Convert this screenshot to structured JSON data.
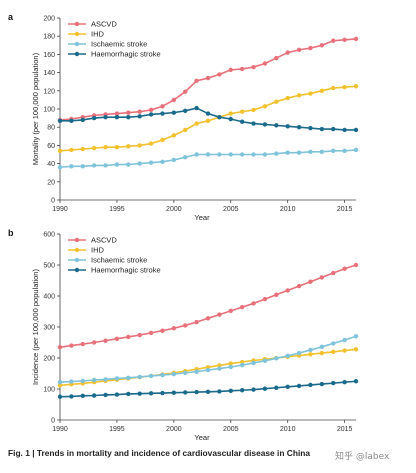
{
  "caption": {
    "bold": "Fig. 1 | Trends in mortality and incidence of cardiovascular disease in China",
    "rest": ""
  },
  "watermark": "知乎 @labex",
  "chart_data": [
    {
      "type": "line",
      "panel_label": "a",
      "xlabel": "Year",
      "ylabel": "Mortality (per 100,000 population)",
      "xlim": [
        1990,
        2016
      ],
      "ylim": [
        0,
        200
      ],
      "x_ticks": [
        1990,
        1995,
        2000,
        2005,
        2010,
        2015
      ],
      "y_ticks": [
        0,
        20,
        40,
        60,
        80,
        100,
        120,
        140,
        160,
        180,
        200
      ],
      "grid": false,
      "legend_position": "top-left",
      "x": [
        1990,
        1991,
        1992,
        1993,
        1994,
        1995,
        1996,
        1997,
        1998,
        1999,
        2000,
        2001,
        2002,
        2003,
        2004,
        2005,
        2006,
        2007,
        2008,
        2009,
        2010,
        2011,
        2012,
        2013,
        2014,
        2015,
        2016
      ],
      "series": [
        {
          "name": "ASCVD",
          "color": "#e8707a",
          "values": [
            88,
            89,
            91,
            93,
            94,
            95,
            96,
            97,
            99,
            103,
            110,
            119,
            131,
            134,
            138,
            143,
            144,
            146,
            150,
            156,
            162,
            165,
            167,
            170,
            175,
            176,
            177
          ]
        },
        {
          "name": "IHD",
          "color": "#f2c12e",
          "values": [
            54,
            55,
            56,
            57,
            58,
            58,
            59,
            60,
            62,
            66,
            71,
            77,
            84,
            87,
            91,
            95,
            97,
            99,
            103,
            108,
            112,
            115,
            117,
            120,
            123,
            124,
            125
          ]
        },
        {
          "name": "Ischaemic stroke",
          "color": "#7ec3d9",
          "values": [
            36,
            37,
            37,
            38,
            38,
            39,
            39,
            40,
            41,
            42,
            44,
            47,
            50,
            50,
            50,
            50,
            50,
            50,
            50,
            51,
            52,
            52,
            53,
            53,
            54,
            54,
            55
          ]
        },
        {
          "name": "Haemorrhagic stroke",
          "color": "#1a6a8c",
          "values": [
            87,
            87,
            88,
            90,
            91,
            91,
            91,
            92,
            94,
            95,
            96,
            98,
            101,
            95,
            91,
            89,
            86,
            84,
            83,
            82,
            81,
            80,
            79,
            78,
            78,
            77,
            77
          ]
        }
      ]
    },
    {
      "type": "line",
      "panel_label": "b",
      "xlabel": "Year",
      "ylabel": "Incidence (per 100,000 population)",
      "xlim": [
        1990,
        2016
      ],
      "ylim": [
        0,
        600
      ],
      "x_ticks": [
        1990,
        1995,
        2000,
        2005,
        2010,
        2015
      ],
      "y_ticks": [
        0,
        100,
        200,
        300,
        400,
        500,
        600
      ],
      "grid": false,
      "legend_position": "top-left",
      "x": [
        1990,
        1991,
        1992,
        1993,
        1994,
        1995,
        1996,
        1997,
        1998,
        1999,
        2000,
        2001,
        2002,
        2003,
        2004,
        2005,
        2006,
        2007,
        2008,
        2009,
        2010,
        2011,
        2012,
        2013,
        2014,
        2015,
        2016
      ],
      "series": [
        {
          "name": "ASCVD",
          "color": "#e8707a",
          "values": [
            235,
            240,
            245,
            250,
            256,
            262,
            268,
            274,
            281,
            288,
            296,
            305,
            316,
            328,
            340,
            352,
            364,
            376,
            390,
            404,
            418,
            432,
            446,
            460,
            474,
            488,
            500
          ]
        },
        {
          "name": "IHD",
          "color": "#f2c12e",
          "values": [
            112,
            115,
            118,
            122,
            126,
            130,
            134,
            138,
            142,
            147,
            152,
            158,
            164,
            170,
            176,
            182,
            187,
            192,
            196,
            200,
            204,
            208,
            212,
            216,
            220,
            224,
            228
          ]
        },
        {
          "name": "Ischaemic stroke",
          "color": "#7ec3d9",
          "values": [
            122,
            124,
            126,
            129,
            131,
            134,
            136,
            139,
            142,
            145,
            148,
            152,
            156,
            161,
            166,
            171,
            177,
            184,
            191,
            199,
            207,
            216,
            226,
            236,
            247,
            258,
            270
          ]
        },
        {
          "name": "Haemorrhagic stroke",
          "color": "#1a6a8c",
          "values": [
            75,
            76,
            78,
            79,
            81,
            82,
            84,
            85,
            86,
            87,
            88,
            89,
            90,
            91,
            92,
            94,
            96,
            98,
            101,
            104,
            107,
            110,
            113,
            116,
            119,
            122,
            125
          ]
        }
      ]
    }
  ]
}
